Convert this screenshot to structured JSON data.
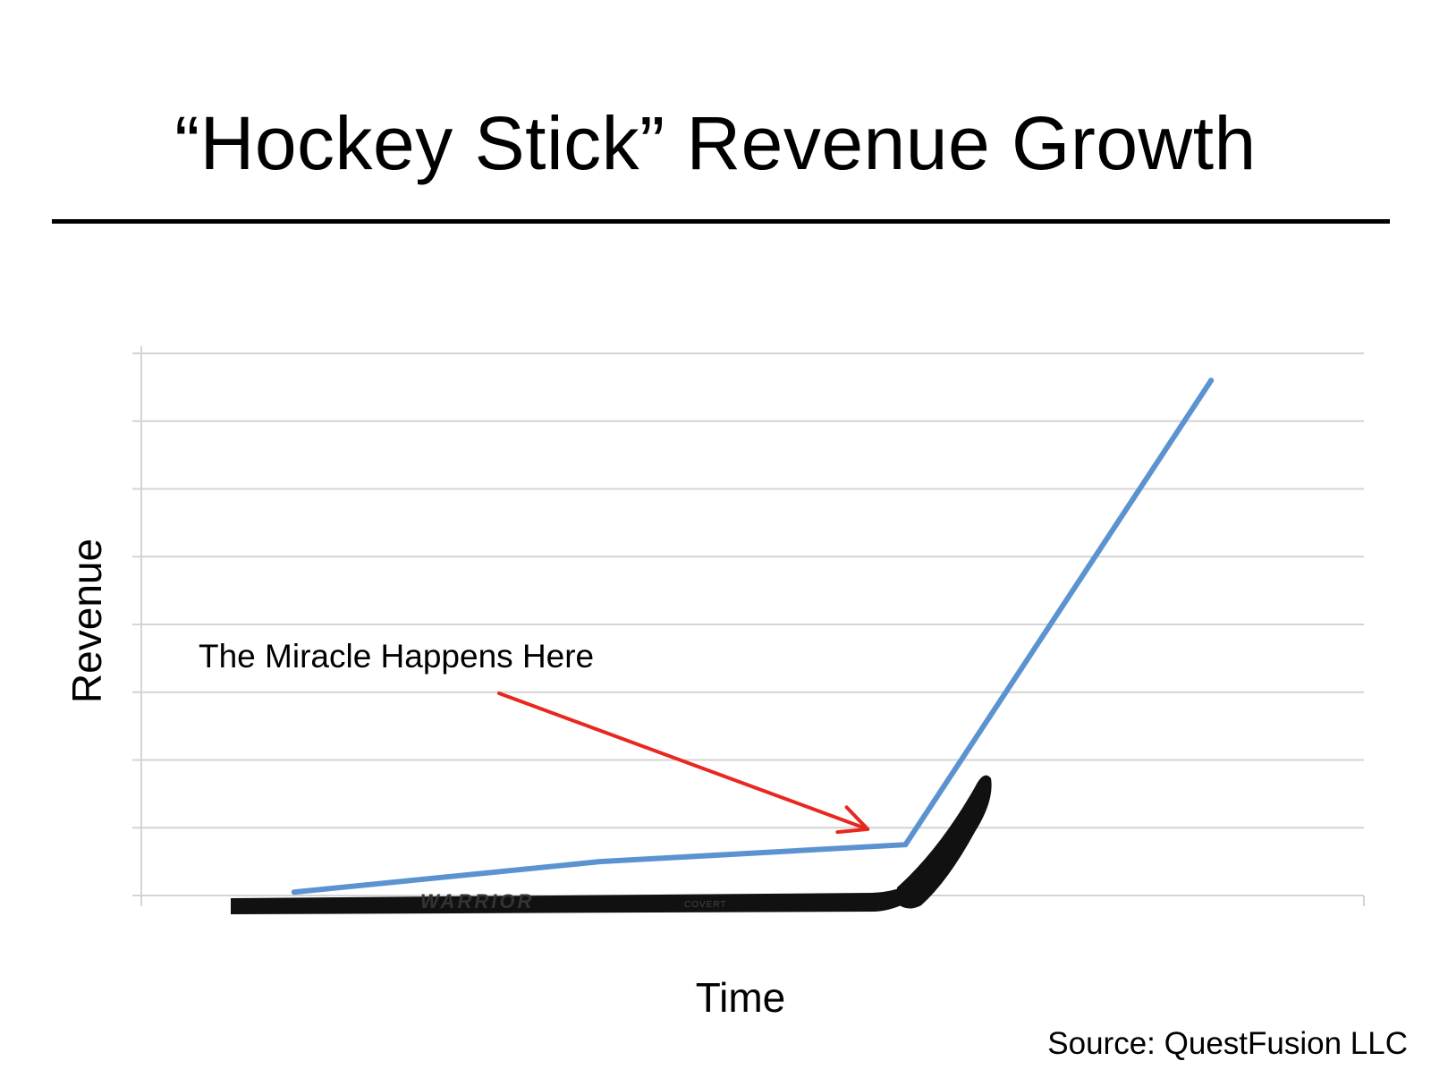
{
  "slide": {
    "title": "“Hockey Stick” Revenue Growth",
    "source": "Source: QuestFusion LLC"
  },
  "colors": {
    "line": "#5b93d0",
    "arrow": "#e8281e",
    "grid": "#d4d4d4",
    "stick": "#111111"
  },
  "chart_data": {
    "type": "line",
    "title": "“Hockey Stick” Revenue Growth",
    "xlabel": "Time",
    "ylabel": "Revenue",
    "xlim": [
      0,
      8
    ],
    "ylim": [
      0,
      8
    ],
    "grid": true,
    "legend": "none",
    "series": [
      {
        "x": [
          1,
          3,
          5,
          7
        ],
        "values": [
          0.05,
          0.5,
          0.75,
          7.6
        ]
      }
    ],
    "annotations": [
      {
        "text": "The Miracle Happens Here",
        "points_to": {
          "x": 4.8,
          "y": 0.9
        }
      }
    ],
    "decoration": "hockey-stick-image"
  }
}
